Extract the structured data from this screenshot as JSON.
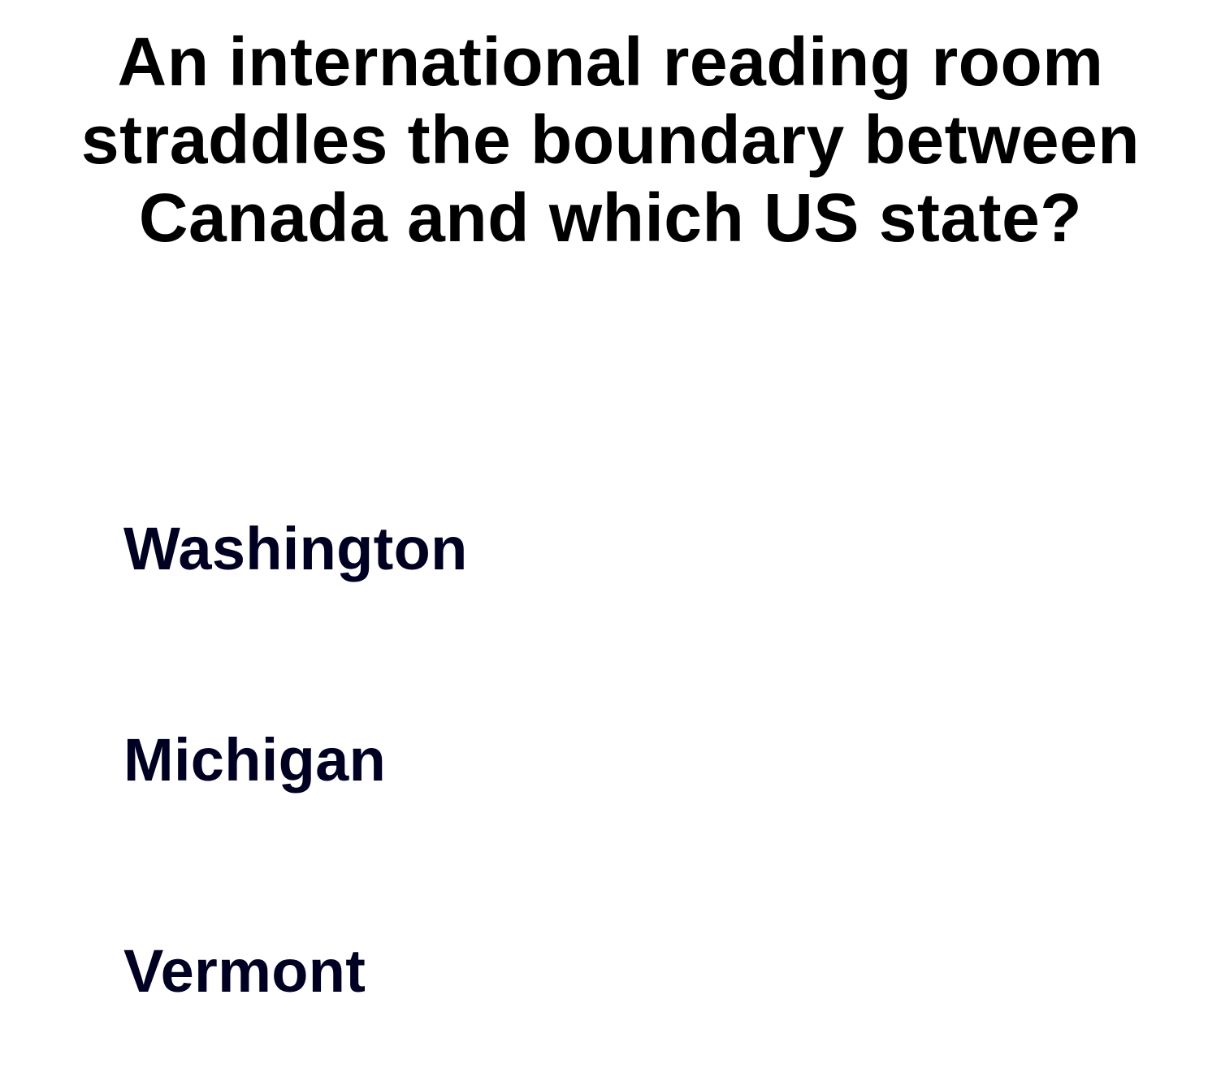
{
  "question": {
    "text": "An international reading room straddles the boundary between Canada and which US state?"
  },
  "answers": [
    {
      "label": "Washington"
    },
    {
      "label": "Michigan"
    },
    {
      "label": "Vermont"
    }
  ],
  "colors": {
    "background": "#ffffff",
    "question_text": "#000000",
    "answer_text": "#000022"
  }
}
